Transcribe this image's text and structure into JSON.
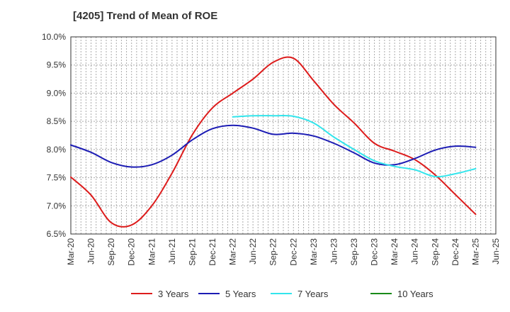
{
  "chart_data": {
    "type": "line",
    "title": "[4205]  Trend of Mean of ROE",
    "xlabel": "",
    "ylabel": "",
    "x": [
      "Mar-20",
      "Jun-20",
      "Sep-20",
      "Dec-20",
      "Mar-21",
      "Jun-21",
      "Sep-21",
      "Dec-21",
      "Mar-22",
      "Jun-22",
      "Sep-22",
      "Dec-22",
      "Mar-23",
      "Jun-23",
      "Sep-23",
      "Dec-23",
      "Mar-24",
      "Jun-24",
      "Sep-24",
      "Dec-24",
      "Mar-25",
      "Jun-25"
    ],
    "ylim": [
      6.5,
      10.0
    ],
    "yticks": [
      6.5,
      7.0,
      7.5,
      8.0,
      8.5,
      9.0,
      9.5,
      10.0
    ],
    "ytick_labels": [
      "6.5%",
      "7.0%",
      "7.5%",
      "8.0%",
      "8.5%",
      "9.0%",
      "9.5%",
      "10.0%"
    ],
    "grid": true,
    "legend_position": "bottom",
    "series": [
      {
        "name": "3 Years",
        "color": "#dd1c1c",
        "values": [
          7.51,
          7.19,
          6.7,
          6.66,
          7.0,
          7.58,
          8.26,
          8.74,
          9.0,
          9.25,
          9.55,
          9.62,
          9.22,
          8.8,
          8.47,
          8.11,
          7.97,
          7.82,
          7.55,
          7.2,
          6.85,
          null
        ]
      },
      {
        "name": "5 Years",
        "color": "#1c1cb4",
        "values": [
          8.08,
          7.95,
          7.77,
          7.69,
          7.73,
          7.9,
          8.17,
          8.37,
          8.43,
          8.38,
          8.27,
          8.29,
          8.24,
          8.11,
          7.94,
          7.76,
          7.73,
          7.84,
          7.99,
          8.06,
          8.04,
          null
        ]
      },
      {
        "name": "7 Years",
        "color": "#33e5ec",
        "values": [
          null,
          null,
          null,
          null,
          null,
          null,
          null,
          null,
          8.58,
          8.6,
          8.6,
          8.59,
          8.47,
          8.22,
          8.0,
          7.8,
          7.7,
          7.64,
          7.52,
          7.57,
          7.66,
          null
        ]
      },
      {
        "name": "10 Years",
        "color": "#1a8a1a",
        "values": [
          null,
          null,
          null,
          null,
          null,
          null,
          null,
          null,
          null,
          null,
          null,
          null,
          null,
          null,
          null,
          null,
          null,
          null,
          null,
          null,
          null,
          null
        ]
      }
    ]
  }
}
